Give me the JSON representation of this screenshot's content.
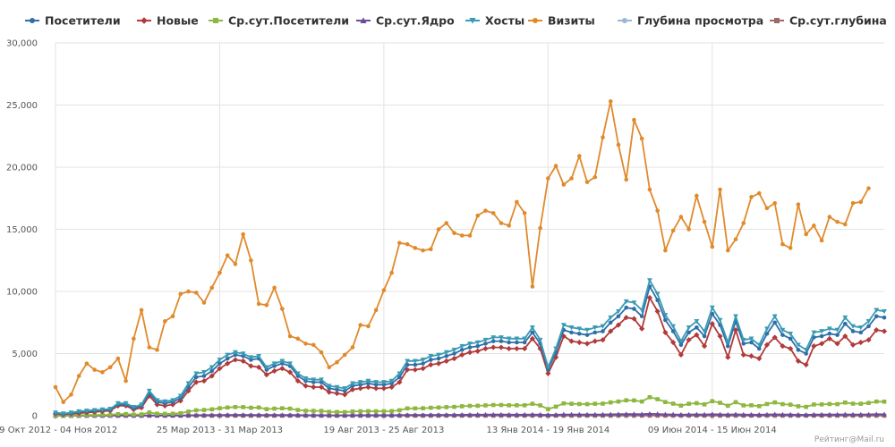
{
  "chart_data": {
    "type": "line",
    "ylim": [
      0,
      30000
    ],
    "y_ticks": [
      "0",
      "5,000",
      "10,000",
      "15,000",
      "20,000",
      "25,000",
      "30,000"
    ],
    "x_tick_labels": [
      {
        "index": 0,
        "label": "29 Окт 2012 - 04 Ноя 2012"
      },
      {
        "index": 21,
        "label": "25 Мар 2013 - 31 Мар 2013"
      },
      {
        "index": 42,
        "label": "19 Авг 2013 - 25 Авг 2013"
      },
      {
        "index": 63,
        "label": "13 Янв 2014 - 19 Янв 2014"
      },
      {
        "index": 84,
        "label": "09 Июн 2014 - 15 Июн 2014"
      }
    ],
    "legend_position": "top",
    "grid": true,
    "footer": "Рейтинг@Mail.ru",
    "series": [
      {
        "name": "Посетители",
        "color": "#2f6fa8",
        "marker": "circle",
        "values": [
          200,
          150,
          200,
          300,
          350,
          400,
          450,
          500,
          900,
          900,
          600,
          800,
          1800,
          1100,
          1000,
          1100,
          1400,
          2300,
          3100,
          3200,
          3600,
          4200,
          4600,
          4900,
          4800,
          4500,
          4600,
          3700,
          4000,
          4200,
          4000,
          3200,
          2800,
          2700,
          2700,
          2200,
          2100,
          2000,
          2400,
          2500,
          2600,
          2500,
          2500,
          2600,
          3100,
          4100,
          4100,
          4200,
          4500,
          4600,
          4800,
          5000,
          5300,
          5500,
          5600,
          5800,
          6000,
          6000,
          5900,
          5900,
          5900,
          6700,
          5800,
          3700,
          5100,
          6900,
          6700,
          6600,
          6500,
          6700,
          6800,
          7500,
          8000,
          8700,
          8600,
          8000,
          10400,
          9300,
          7700,
          6800,
          5700,
          6700,
          7100,
          6400,
          8200,
          7300,
          5600,
          7600,
          5800,
          5900,
          5400,
          6600,
          7500,
          6500,
          6200,
          5300,
          5000,
          6300,
          6400,
          6600,
          6500,
          7400,
          6800,
          6700,
          7200,
          8000,
          7900
        ]
      },
      {
        "name": "Новые",
        "color": "#b23a3a",
        "marker": "diamond",
        "values": [
          150,
          100,
          150,
          200,
          250,
          300,
          350,
          400,
          800,
          800,
          500,
          650,
          1600,
          900,
          800,
          900,
          1200,
          2000,
          2700,
          2800,
          3200,
          3800,
          4200,
          4500,
          4400,
          4000,
          3900,
          3300,
          3600,
          3800,
          3500,
          2800,
          2400,
          2300,
          2300,
          1900,
          1800,
          1700,
          2100,
          2200,
          2300,
          2200,
          2200,
          2300,
          2700,
          3700,
          3700,
          3800,
          4100,
          4200,
          4400,
          4600,
          4900,
          5100,
          5200,
          5400,
          5500,
          5500,
          5400,
          5400,
          5400,
          6200,
          5400,
          3400,
          4700,
          6400,
          6000,
          5900,
          5800,
          6000,
          6100,
          6800,
          7300,
          7900,
          7800,
          7000,
          9500,
          8400,
          6700,
          5900,
          4900,
          6100,
          6500,
          5600,
          7400,
          6400,
          4700,
          6900,
          4900,
          4800,
          4600,
          5700,
          6300,
          5600,
          5400,
          4400,
          4100,
          5600,
          5800,
          6200,
          5800,
          6400,
          5700,
          5900,
          6100,
          6900,
          6800
        ]
      },
      {
        "name": "Ср.сут.Посетители",
        "color": "#8db73f",
        "marker": "square",
        "values": [
          30,
          25,
          30,
          45,
          50,
          60,
          65,
          70,
          130,
          130,
          90,
          110,
          260,
          160,
          150,
          160,
          200,
          330,
          440,
          460,
          510,
          600,
          660,
          700,
          690,
          640,
          660,
          530,
          570,
          600,
          570,
          460,
          400,
          390,
          390,
          310,
          300,
          290,
          340,
          360,
          370,
          360,
          360,
          370,
          440,
          590,
          590,
          600,
          640,
          660,
          690,
          710,
          760,
          790,
          800,
          830,
          860,
          860,
          840,
          840,
          840,
          960,
          830,
          530,
          730,
          990,
          960,
          940,
          930,
          960,
          970,
          1070,
          1140,
          1240,
          1230,
          1140,
          1490,
          1330,
          1100,
          970,
          810,
          960,
          1010,
          910,
          1170,
          1040,
          800,
          1090,
          830,
          840,
          770,
          940,
          1070,
          930,
          890,
          760,
          710,
          900,
          910,
          940,
          930,
          1060,
          970,
          960,
          1030,
          1140,
          1130
        ]
      },
      {
        "name": "Ср.сут.Ядро",
        "color": "#6b4c9a",
        "marker": "triangle",
        "values": [
          5,
          5,
          5,
          6,
          7,
          8,
          8,
          9,
          15,
          15,
          11,
          13,
          28,
          18,
          17,
          18,
          22,
          35,
          45,
          47,
          52,
          60,
          66,
          70,
          69,
          65,
          66,
          55,
          58,
          61,
          58,
          48,
          43,
          42,
          42,
          35,
          34,
          33,
          38,
          40,
          41,
          40,
          40,
          41,
          48,
          63,
          63,
          64,
          68,
          70,
          73,
          75,
          80,
          83,
          84,
          87,
          90,
          90,
          88,
          88,
          88,
          100,
          87,
          57,
          77,
          104,
          101,
          99,
          98,
          101,
          102,
          112,
          120,
          130,
          129,
          120,
          155,
          139,
          115,
          102,
          85,
          100,
          106,
          95,
          122,
          109,
          84,
          114,
          87,
          88,
          81,
          98,
          112,
          97,
          93,
          80,
          75,
          94,
          95,
          99,
          97,
          111,
          101,
          100,
          108,
          119,
          118
        ]
      },
      {
        "name": "Хосты",
        "color": "#3a9bb2",
        "marker": "triangle-down",
        "values": [
          250,
          180,
          250,
          350,
          400,
          450,
          500,
          550,
          1000,
          1000,
          700,
          900,
          2000,
          1250,
          1150,
          1250,
          1600,
          2600,
          3400,
          3500,
          3900,
          4500,
          4900,
          5100,
          5000,
          4700,
          4800,
          3900,
          4200,
          4400,
          4200,
          3400,
          3000,
          2900,
          2900,
          2400,
          2300,
          2200,
          2600,
          2700,
          2800,
          2700,
          2700,
          2800,
          3400,
          4400,
          4400,
          4500,
          4800,
          4900,
          5100,
          5300,
          5600,
          5800,
          5900,
          6100,
          6300,
          6300,
          6200,
          6200,
          6200,
          7100,
          6100,
          3900,
          5400,
          7300,
          7100,
          7000,
          6900,
          7100,
          7200,
          7900,
          8400,
          9200,
          9100,
          8500,
          10900,
          9800,
          8100,
          7200,
          6000,
          7100,
          7600,
          6800,
          8700,
          7700,
          5900,
          8000,
          6100,
          6200,
          5700,
          7000,
          8000,
          6900,
          6600,
          5700,
          5300,
          6700,
          6800,
          7000,
          6900,
          7900,
          7200,
          7100,
          7600,
          8500,
          8400
        ]
      },
      {
        "name": "Визиты",
        "color": "#e08a2c",
        "marker": "circle",
        "values": [
          2300,
          1100,
          1700,
          3200,
          4200,
          3700,
          3500,
          3900,
          4600,
          2800,
          6200,
          8500,
          5500,
          5300,
          7600,
          8000,
          9800,
          10000,
          9900,
          9100,
          10300,
          11500,
          12900,
          12200,
          14600,
          12500,
          9000,
          8900,
          10300,
          8600,
          6400,
          6200,
          5800,
          5700,
          5100,
          3900,
          4300,
          4900,
          5500,
          7300,
          7200,
          8500,
          10100,
          11500,
          13900,
          13800,
          13500,
          13300,
          13400,
          15000,
          15500,
          14700,
          14500,
          14500,
          16100,
          16500,
          16300,
          15500,
          15300,
          17200,
          16300,
          10400,
          15100,
          19100,
          20100,
          18600,
          19100,
          20900,
          18800,
          19200,
          22400,
          25300,
          21800,
          19000,
          23800,
          22300,
          18200,
          16500,
          13300,
          14900,
          16000,
          15000,
          17700,
          15600,
          13600,
          18200,
          13300,
          14200,
          15500,
          17600,
          17900,
          16700,
          17100,
          13800,
          13500,
          17000,
          14600,
          15300,
          14100,
          16000,
          15600,
          15400,
          17100,
          17200,
          18300
        ]
      },
      {
        "name": "Глубина просмотра",
        "color": "#9cb7d6",
        "marker": "circle",
        "values": [
          4,
          4,
          4,
          4,
          4,
          4,
          4,
          4,
          4,
          4,
          4,
          4,
          4,
          4,
          4,
          4,
          4,
          4,
          4,
          4,
          4,
          4,
          4,
          4,
          4,
          4,
          4,
          4,
          4,
          4,
          4,
          4,
          4,
          4,
          4,
          4,
          4,
          4,
          4,
          4,
          4,
          4,
          4,
          4,
          4,
          4,
          4,
          4,
          4,
          4,
          4,
          4,
          4,
          4,
          4,
          4,
          4,
          4,
          4,
          4,
          4,
          4,
          4,
          4,
          4,
          4,
          4,
          4,
          4,
          4,
          4,
          4,
          4,
          4,
          4,
          4,
          4,
          4,
          4,
          4,
          4,
          4,
          4,
          4,
          4,
          4,
          4,
          4,
          4,
          4,
          4,
          4,
          4,
          4,
          4,
          4,
          4,
          4,
          4,
          4,
          4,
          4,
          4,
          4,
          4,
          4,
          4
        ]
      },
      {
        "name": "Ср.сут.глубина",
        "color": "#9b6b6b",
        "marker": "square",
        "values": [
          4,
          4,
          4,
          4,
          4,
          4,
          4,
          4,
          4,
          4,
          4,
          4,
          4,
          4,
          4,
          4,
          4,
          4,
          4,
          4,
          4,
          4,
          4,
          4,
          4,
          4,
          4,
          4,
          4,
          4,
          4,
          4,
          4,
          4,
          4,
          4,
          4,
          4,
          4,
          4,
          4,
          4,
          4,
          4,
          4,
          4,
          4,
          4,
          4,
          4,
          4,
          4,
          4,
          4,
          4,
          4,
          4,
          4,
          4,
          4,
          4,
          4,
          4,
          4,
          4,
          4,
          4,
          4,
          4,
          4,
          4,
          4,
          4,
          4,
          4,
          4,
          4,
          4,
          4,
          4,
          4,
          4,
          4,
          4,
          4,
          4,
          4,
          4,
          4,
          4,
          4,
          4,
          4,
          4,
          4,
          4,
          4,
          4,
          4,
          4,
          4,
          4,
          4,
          4,
          4,
          4,
          4
        ]
      }
    ]
  }
}
